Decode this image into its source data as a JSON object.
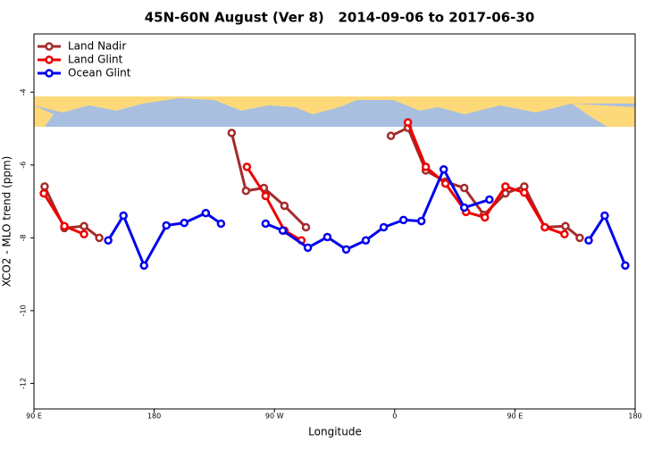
{
  "chart_data": {
    "type": "line",
    "title": "45N-60N August (Ver 8)   2014-09-06 to 2017-06-30",
    "x_label": "Longitude",
    "y_label": "XCO2 - MLO trend (ppm)",
    "xlim": [
      90,
      540
    ],
    "ylim": [
      -12.7,
      -2.4
    ],
    "xticks": [
      {
        "value": 90,
        "label": "90 E"
      },
      180,
      {
        "value": 270,
        "label": "90 W"
      },
      {
        "value": 360,
        "label": "0"
      },
      {
        "value": 450,
        "label": "90 E"
      },
      {
        "value": 540,
        "label": "180"
      }
    ],
    "yticks": [
      -4,
      -6,
      -8,
      -10,
      -12
    ],
    "legend": "top-left",
    "series": [
      {
        "name": "Land Nadir",
        "color": "#a52a2a",
        "x": [
          98,
          112.8,
          127.5,
          138.9,
          null,
          238,
          248.7,
          262.1,
          277.5,
          293.6,
          null,
          357.2,
          369.9,
          383.3,
          398,
          412.1,
          426.8,
          442.9,
          457,
          472.4,
          487.8,
          498.5
        ],
        "values": [
          -6.59,
          -7.73,
          -7.68,
          -8.0,
          null,
          -5.12,
          -6.71,
          -6.63,
          -7.12,
          -7.71,
          null,
          -5.2,
          -4.98,
          -6.15,
          -6.46,
          -6.63,
          -7.37,
          -6.78,
          -6.59,
          -7.71,
          -7.68,
          -8.0
        ]
      },
      {
        "name": "Land Glint",
        "color": "#ee0000",
        "x": [
          97.4,
          112.8,
          127.5,
          null,
          249.4,
          263.4,
          277.5,
          290.2,
          null,
          369.9,
          383.3,
          398,
          413.4,
          427.5,
          442.9,
          457,
          472.4,
          487.1
        ],
        "values": [
          -6.78,
          -7.68,
          -7.9,
          null,
          -6.05,
          -6.85,
          -7.8,
          -8.07,
          null,
          -4.83,
          -6.05,
          -6.51,
          -7.29,
          -7.44,
          -6.59,
          -6.76,
          -7.71,
          -7.9
        ]
      },
      {
        "name": "Ocean Glint",
        "color": "#0000ee",
        "x": [
          145.6,
          157,
          172.4,
          189.1,
          202.5,
          218.6,
          230,
          null,
          263.4,
          276.2,
          295,
          309.6,
          323.7,
          338.4,
          351.8,
          366.6,
          380,
          396.7,
          412.1,
          430.9,
          null,
          505.2,
          517.2,
          532.6
        ],
        "values": [
          -8.07,
          -7.39,
          -8.76,
          -7.66,
          -7.59,
          -7.32,
          -7.61,
          null,
          -7.61,
          -7.8,
          -8.27,
          -7.98,
          -8.32,
          -8.07,
          -7.71,
          -7.51,
          -7.54,
          -6.12,
          -7.17,
          -6.95,
          null,
          -8.07,
          -7.39,
          -8.76
        ]
      }
    ]
  }
}
